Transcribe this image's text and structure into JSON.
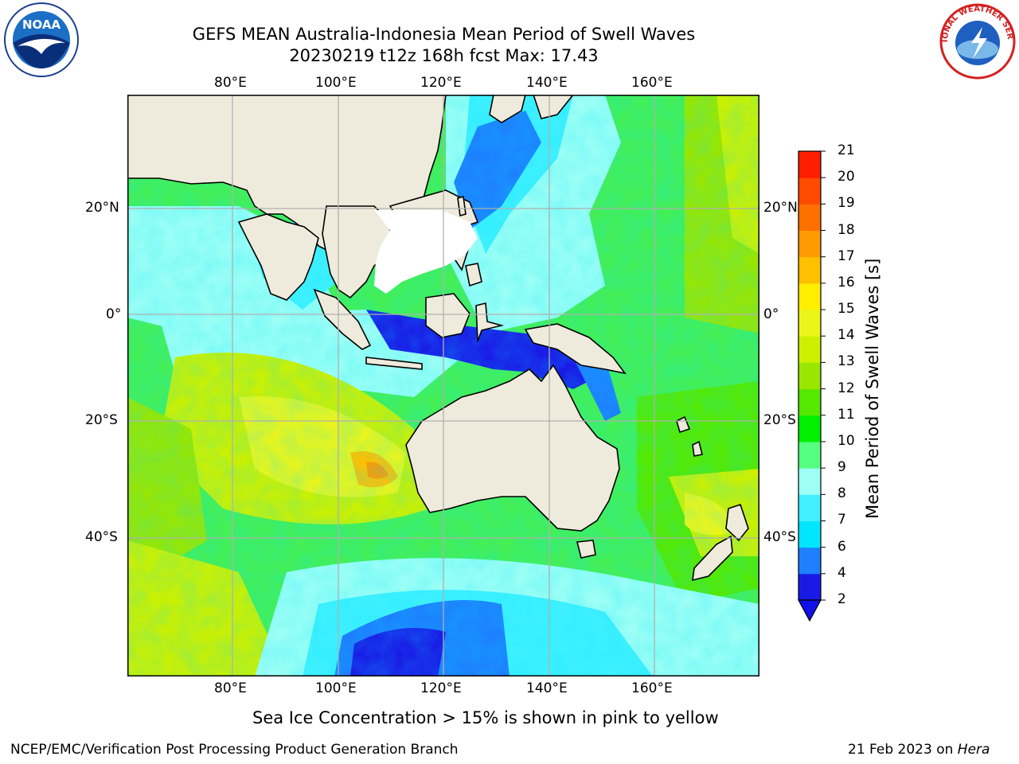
{
  "title": {
    "line1": "GEFS MEAN Australia-Indonesia Mean Period of Swell Waves",
    "line2": "20230219 t12z 168h fcst   Max: 17.43"
  },
  "map": {
    "lon_labels": [
      "80°E",
      "100°E",
      "120°E",
      "140°E",
      "160°E"
    ],
    "lat_labels": [
      "20°N",
      "0°",
      "20°S",
      "40°S"
    ],
    "land_color": "#efebdc",
    "grid_color": "#b0b0b0"
  },
  "colorbar": {
    "label": "Mean Period of Swell Waves [s]",
    "ticks": [
      "2",
      "4",
      "6",
      "7",
      "8",
      "9",
      "10",
      "11",
      "12",
      "13",
      "14",
      "15",
      "16",
      "17",
      "18",
      "19",
      "20",
      "21"
    ],
    "colors": [
      "#1a1ae6",
      "#1e7fff",
      "#00e6ff",
      "#40f0ff",
      "#9dfff5",
      "#55ff80",
      "#00f000",
      "#55e800",
      "#99e600",
      "#ccf000",
      "#ebf51a",
      "#ffee00",
      "#ffc000",
      "#ff9a00",
      "#ff7000",
      "#ff4a00",
      "#ff1e00",
      "#ff0000"
    ]
  },
  "ice_note": "Sea Ice Concentration > 15% is shown in pink to yellow",
  "footer": {
    "left": "NCEP/EMC/Verification Post Processing Product Generation Branch",
    "right_prefix": "21 Feb 2023 on ",
    "right_host": "Hera"
  },
  "logos": {
    "noaa_text": "NOAA",
    "nws_text": "NATIONAL WEATHER SERVICE"
  }
}
